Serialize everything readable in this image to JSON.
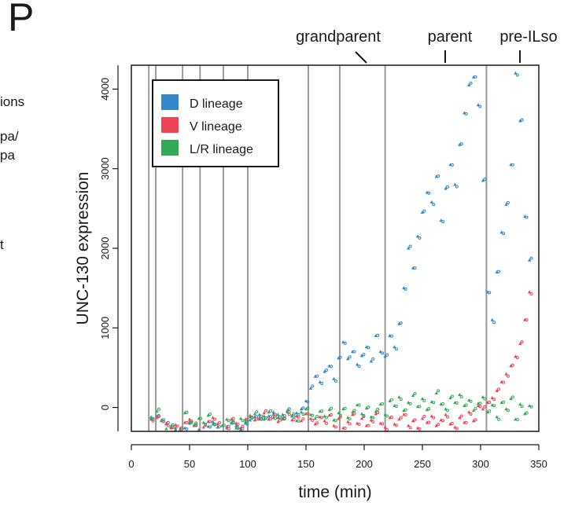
{
  "panel_label": "P",
  "side_fragments": [
    "ions",
    "pa/",
    "pa",
    "t"
  ],
  "stage_annotations": [
    "grandparent",
    "parent",
    "pre-ILso"
  ],
  "colors": {
    "d": "#3388cc",
    "v": "#ee4455",
    "lr": "#33aa55",
    "vline": "#9a9a9a"
  },
  "chart_data": {
    "type": "scatter",
    "xlabel": "time (min)",
    "ylabel": "UNC-130 expression",
    "xlim": [
      0,
      350
    ],
    "ylim": [
      -300,
      4300
    ],
    "xticks": [
      0,
      50,
      100,
      150,
      200,
      250,
      300,
      350
    ],
    "yticks": [
      0,
      1000,
      2000,
      3000,
      4000
    ],
    "grid": false,
    "legend": {
      "position": "top-left",
      "boxed": true
    },
    "division_lines_min": [
      15,
      21,
      44,
      59,
      79,
      100,
      152,
      179,
      218,
      305
    ],
    "series": [
      {
        "name": "D lineage",
        "color_key": "d",
        "points": [
          [
            17,
            -120
          ],
          [
            22,
            -110
          ],
          [
            26,
            -160
          ],
          [
            30,
            -210
          ],
          [
            34,
            -240
          ],
          [
            38,
            -260
          ],
          [
            42,
            -300
          ],
          [
            46,
            -260
          ],
          [
            50,
            -200
          ],
          [
            54,
            -230
          ],
          [
            58,
            -280
          ],
          [
            62,
            -300
          ],
          [
            66,
            -240
          ],
          [
            70,
            -180
          ],
          [
            74,
            -250
          ],
          [
            78,
            -320
          ],
          [
            82,
            -260
          ],
          [
            86,
            -190
          ],
          [
            90,
            -230
          ],
          [
            94,
            -280
          ],
          [
            98,
            -200
          ],
          [
            102,
            -160
          ],
          [
            106,
            -120
          ],
          [
            110,
            -90
          ],
          [
            114,
            -150
          ],
          [
            118,
            -110
          ],
          [
            122,
            -60
          ],
          [
            126,
            -130
          ],
          [
            130,
            -90
          ],
          [
            134,
            -40
          ],
          [
            138,
            -110
          ],
          [
            142,
            -70
          ],
          [
            146,
            -20
          ],
          [
            150,
            80
          ],
          [
            154,
            240
          ],
          [
            158,
            390
          ],
          [
            162,
            320
          ],
          [
            166,
            450
          ],
          [
            170,
            520
          ],
          [
            174,
            360
          ],
          [
            178,
            620
          ],
          [
            182,
            820
          ],
          [
            186,
            610
          ],
          [
            190,
            700
          ],
          [
            194,
            540
          ],
          [
            198,
            650
          ],
          [
            202,
            760
          ],
          [
            206,
            580
          ],
          [
            210,
            900
          ],
          [
            214,
            700
          ],
          [
            218,
            640
          ],
          [
            222,
            900
          ],
          [
            226,
            760
          ],
          [
            230,
            1050
          ],
          [
            234,
            1500
          ],
          [
            238,
            2000
          ],
          [
            242,
            1750
          ],
          [
            246,
            2150
          ],
          [
            250,
            2450
          ],
          [
            254,
            2700
          ],
          [
            258,
            2580
          ],
          [
            262,
            2900
          ],
          [
            266,
            2350
          ],
          [
            270,
            2750
          ],
          [
            274,
            3050
          ],
          [
            278,
            2800
          ],
          [
            282,
            3300
          ],
          [
            286,
            3700
          ],
          [
            290,
            4050
          ],
          [
            294,
            4150
          ],
          [
            298,
            3800
          ],
          [
            302,
            2850
          ],
          [
            306,
            1450
          ],
          [
            310,
            1100
          ],
          [
            314,
            1700
          ],
          [
            318,
            2200
          ],
          [
            322,
            2550
          ],
          [
            326,
            3050
          ],
          [
            330,
            4200
          ],
          [
            334,
            3600
          ],
          [
            338,
            2400
          ],
          [
            342,
            1850
          ]
        ]
      },
      {
        "name": "V lineage",
        "color_key": "v",
        "points": [
          [
            17,
            -150
          ],
          [
            22,
            -130
          ],
          [
            26,
            -170
          ],
          [
            30,
            -200
          ],
          [
            34,
            -260
          ],
          [
            38,
            -220
          ],
          [
            42,
            -280
          ],
          [
            46,
            -190
          ],
          [
            50,
            -150
          ],
          [
            54,
            -230
          ],
          [
            58,
            -300
          ],
          [
            62,
            -250
          ],
          [
            66,
            -180
          ],
          [
            70,
            -130
          ],
          [
            74,
            -210
          ],
          [
            78,
            -290
          ],
          [
            82,
            -240
          ],
          [
            86,
            -150
          ],
          [
            90,
            -200
          ],
          [
            94,
            -260
          ],
          [
            98,
            -150
          ],
          [
            102,
            -100
          ],
          [
            106,
            -160
          ],
          [
            110,
            -130
          ],
          [
            114,
            -70
          ],
          [
            118,
            -150
          ],
          [
            122,
            -90
          ],
          [
            126,
            -180
          ],
          [
            130,
            -130
          ],
          [
            134,
            -60
          ],
          [
            138,
            -160
          ],
          [
            142,
            -110
          ],
          [
            146,
            -170
          ],
          [
            150,
            -80
          ],
          [
            154,
            -140
          ],
          [
            158,
            -210
          ],
          [
            162,
            -120
          ],
          [
            166,
            -170
          ],
          [
            170,
            -100
          ],
          [
            174,
            -230
          ],
          [
            178,
            -140
          ],
          [
            182,
            -260
          ],
          [
            186,
            -180
          ],
          [
            190,
            -90
          ],
          [
            194,
            -200
          ],
          [
            198,
            -140
          ],
          [
            202,
            -230
          ],
          [
            206,
            -160
          ],
          [
            210,
            -80
          ],
          [
            214,
            -200
          ],
          [
            218,
            -250
          ],
          [
            222,
            -130
          ],
          [
            226,
            -210
          ],
          [
            230,
            -150
          ],
          [
            234,
            -90
          ],
          [
            238,
            -230
          ],
          [
            242,
            -170
          ],
          [
            246,
            -260
          ],
          [
            250,
            -140
          ],
          [
            254,
            -190
          ],
          [
            258,
            -110
          ],
          [
            262,
            -230
          ],
          [
            266,
            -160
          ],
          [
            270,
            -90
          ],
          [
            274,
            -210
          ],
          [
            278,
            -250
          ],
          [
            282,
            -130
          ],
          [
            286,
            -190
          ],
          [
            290,
            -60
          ],
          [
            294,
            -170
          ],
          [
            298,
            20
          ],
          [
            302,
            -20
          ],
          [
            306,
            60
          ],
          [
            310,
            120
          ],
          [
            314,
            210
          ],
          [
            318,
            320
          ],
          [
            322,
            420
          ],
          [
            326,
            520
          ],
          [
            330,
            640
          ],
          [
            334,
            800
          ],
          [
            338,
            1100
          ],
          [
            342,
            1450
          ]
        ]
      },
      {
        "name": "L/R lineage",
        "color_key": "lr",
        "points": [
          [
            17,
            -130
          ],
          [
            22,
            -50
          ],
          [
            26,
            -160
          ],
          [
            30,
            -270
          ],
          [
            34,
            -240
          ],
          [
            38,
            -280
          ],
          [
            42,
            -260
          ],
          [
            46,
            -70
          ],
          [
            50,
            -180
          ],
          [
            54,
            -220
          ],
          [
            58,
            -140
          ],
          [
            62,
            -190
          ],
          [
            66,
            -100
          ],
          [
            70,
            -210
          ],
          [
            74,
            -300
          ],
          [
            78,
            -230
          ],
          [
            82,
            -150
          ],
          [
            86,
            -200
          ],
          [
            90,
            -260
          ],
          [
            94,
            -140
          ],
          [
            98,
            -180
          ],
          [
            102,
            -120
          ],
          [
            106,
            -80
          ],
          [
            110,
            -150
          ],
          [
            114,
            -110
          ],
          [
            118,
            -60
          ],
          [
            122,
            -130
          ],
          [
            126,
            -90
          ],
          [
            130,
            -150
          ],
          [
            134,
            -40
          ],
          [
            138,
            -100
          ],
          [
            142,
            -170
          ],
          [
            146,
            -60
          ],
          [
            150,
            -20
          ],
          [
            154,
            -90
          ],
          [
            158,
            -140
          ],
          [
            162,
            -50
          ],
          [
            166,
            -110
          ],
          [
            170,
            -30
          ],
          [
            174,
            -160
          ],
          [
            178,
            -70
          ],
          [
            182,
            -20
          ],
          [
            186,
            -130
          ],
          [
            190,
            -60
          ],
          [
            194,
            30
          ],
          [
            198,
            -80
          ],
          [
            202,
            -10
          ],
          [
            206,
            -120
          ],
          [
            210,
            -50
          ],
          [
            214,
            40
          ],
          [
            218,
            -90
          ],
          [
            222,
            80
          ],
          [
            226,
            20
          ],
          [
            230,
            130
          ],
          [
            234,
            -40
          ],
          [
            238,
            60
          ],
          [
            242,
            150
          ],
          [
            246,
            10
          ],
          [
            250,
            110
          ],
          [
            254,
            -30
          ],
          [
            258,
            70
          ],
          [
            262,
            180
          ],
          [
            266,
            40
          ],
          [
            270,
            -20
          ],
          [
            274,
            120
          ],
          [
            278,
            60
          ],
          [
            282,
            160
          ],
          [
            286,
            20
          ],
          [
            290,
            90
          ],
          [
            294,
            -40
          ],
          [
            298,
            50
          ],
          [
            302,
            130
          ],
          [
            306,
            -60
          ],
          [
            310,
            30
          ],
          [
            314,
            -120
          ],
          [
            318,
            60
          ],
          [
            322,
            -20
          ],
          [
            326,
            110
          ],
          [
            330,
            -150
          ],
          [
            334,
            40
          ],
          [
            338,
            -80
          ],
          [
            342,
            20
          ]
        ]
      }
    ]
  }
}
